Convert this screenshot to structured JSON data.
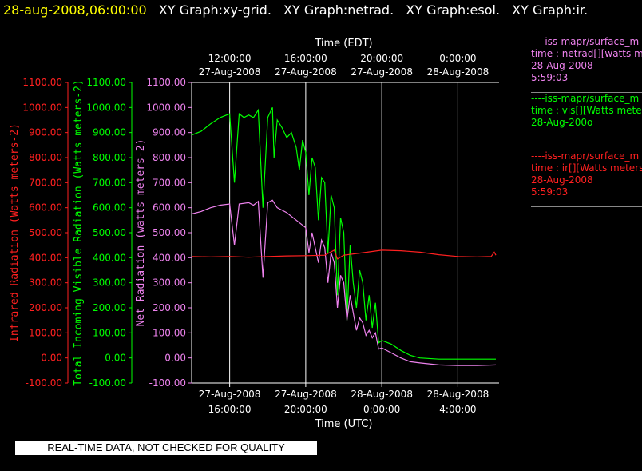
{
  "header": {
    "timestamp": "28-aug-2008,06:00:00",
    "titles": [
      "XY Graph:xy-grid.",
      "XY Graph:netrad.",
      "XY Graph:esol.",
      "XY Graph:ir."
    ]
  },
  "colors": {
    "ir": "#ff2020",
    "vis": "#00ff00",
    "net": "#ee82ee",
    "axis": "#ffffff",
    "grid": "#ffffff",
    "bg": "#000000",
    "timestamp": "#ffff00"
  },
  "legend": [
    {
      "key": "netrad",
      "color": "#ee82ee",
      "source": "----iss-mapr/surface_m",
      "field": "time : netrad[][watts m",
      "date": "28-Aug-2008",
      "time": "5:59:03"
    },
    {
      "key": "vis",
      "color": "#00ff00",
      "source": "----iss-mapr/surface_m",
      "field": "time : vis[][Watts mete",
      "date": "28-Aug-200o",
      "time": ""
    },
    {
      "key": "ir",
      "color": "#ff2020",
      "source": "----iss-mapr/surface_m",
      "field": "time : ir[][Watts meters",
      "date": "28-Aug-2008",
      "time": "5:59:03"
    }
  ],
  "footer": {
    "quality_notice": "REAL-TIME DATA, NOT CHECKED FOR QUALITY"
  },
  "chart_data": {
    "type": "line",
    "x_axis_bottom": {
      "label": "Time (UTC)",
      "range": [
        "2008-08-27T14:00",
        "2008-08-28T06:10"
      ],
      "ticks": [
        {
          "t": "2008-08-27T16:00",
          "date": "27-Aug-2008",
          "time": "16:00:00"
        },
        {
          "t": "2008-08-27T20:00",
          "date": "27-Aug-2008",
          "time": "20:00:00"
        },
        {
          "t": "2008-08-28T00:00",
          "date": "28-Aug-2008",
          "time": "0:00:00"
        },
        {
          "t": "2008-08-28T04:00",
          "date": "28-Aug-2008",
          "time": "4:00:00"
        }
      ]
    },
    "x_axis_top": {
      "label": "Time (EDT)",
      "ticks": [
        {
          "t": "2008-08-27T16:00",
          "time": "12:00:00",
          "date": "27-Aug-2008"
        },
        {
          "t": "2008-08-27T20:00",
          "time": "16:00:00",
          "date": "27-Aug-2008"
        },
        {
          "t": "2008-08-28T00:00",
          "time": "20:00:00",
          "date": "27-Aug-2008"
        },
        {
          "t": "2008-08-28T04:00",
          "time": "0:00:00",
          "date": "28-Aug-2008"
        }
      ]
    },
    "y_axes": [
      {
        "key": "ir",
        "label": "Infrared Radiation (Watts meters-2)",
        "ylim": [
          -100,
          1100
        ],
        "color": "#ff2020"
      },
      {
        "key": "vis",
        "label": "Total Incoming Visible Radiation (Watts meters-2)",
        "ylim": [
          -100,
          1100
        ],
        "color": "#00ff00"
      },
      {
        "key": "net",
        "label": "Net Radiation (watts meters-2)",
        "ylim": [
          -100,
          1100
        ],
        "color": "#ee82ee"
      }
    ],
    "y_ticks": [
      1100,
      1000,
      900,
      800,
      700,
      600,
      500,
      400,
      300,
      200,
      100,
      0,
      -100
    ],
    "grid": true,
    "series": [
      {
        "key": "vis",
        "color": "#00ff00",
        "points": [
          [
            "2008-08-27T14:00",
            890
          ],
          [
            "2008-08-27T14:30",
            905
          ],
          [
            "2008-08-27T15:00",
            935
          ],
          [
            "2008-08-27T15:30",
            960
          ],
          [
            "2008-08-27T16:00",
            975
          ],
          [
            "2008-08-27T16:15",
            700
          ],
          [
            "2008-08-27T16:30",
            975
          ],
          [
            "2008-08-27T16:45",
            960
          ],
          [
            "2008-08-27T17:00",
            970
          ],
          [
            "2008-08-27T17:15",
            960
          ],
          [
            "2008-08-27T17:30",
            990
          ],
          [
            "2008-08-27T17:45",
            600
          ],
          [
            "2008-08-27T18:00",
            960
          ],
          [
            "2008-08-27T18:15",
            1000
          ],
          [
            "2008-08-27T18:20",
            800
          ],
          [
            "2008-08-27T18:30",
            950
          ],
          [
            "2008-08-27T18:45",
            920
          ],
          [
            "2008-08-27T19:00",
            880
          ],
          [
            "2008-08-27T19:15",
            900
          ],
          [
            "2008-08-27T19:30",
            840
          ],
          [
            "2008-08-27T19:40",
            750
          ],
          [
            "2008-08-27T19:50",
            870
          ],
          [
            "2008-08-27T20:00",
            820
          ],
          [
            "2008-08-27T20:10",
            650
          ],
          [
            "2008-08-27T20:20",
            800
          ],
          [
            "2008-08-27T20:30",
            760
          ],
          [
            "2008-08-27T20:40",
            550
          ],
          [
            "2008-08-27T20:50",
            720
          ],
          [
            "2008-08-27T21:00",
            700
          ],
          [
            "2008-08-27T21:10",
            420
          ],
          [
            "2008-08-27T21:20",
            650
          ],
          [
            "2008-08-27T21:30",
            600
          ],
          [
            "2008-08-27T21:40",
            250
          ],
          [
            "2008-08-27T21:50",
            560
          ],
          [
            "2008-08-27T22:00",
            500
          ],
          [
            "2008-08-27T22:10",
            150
          ],
          [
            "2008-08-27T22:20",
            450
          ],
          [
            "2008-08-27T22:30",
            300
          ],
          [
            "2008-08-27T22:40",
            200
          ],
          [
            "2008-08-27T22:50",
            350
          ],
          [
            "2008-08-27T23:00",
            300
          ],
          [
            "2008-08-27T23:10",
            150
          ],
          [
            "2008-08-27T23:20",
            250
          ],
          [
            "2008-08-27T23:30",
            120
          ],
          [
            "2008-08-27T23:40",
            220
          ],
          [
            "2008-08-27T23:50",
            60
          ],
          [
            "2008-08-28T00:00",
            70
          ],
          [
            "2008-08-28T00:30",
            55
          ],
          [
            "2008-08-28T01:00",
            30
          ],
          [
            "2008-08-28T01:30",
            10
          ],
          [
            "2008-08-28T02:00",
            0
          ],
          [
            "2008-08-28T03:00",
            -5
          ],
          [
            "2008-08-28T04:00",
            -5
          ],
          [
            "2008-08-28T05:00",
            -5
          ],
          [
            "2008-08-28T06:00",
            -5
          ]
        ]
      },
      {
        "key": "net",
        "color": "#ee82ee",
        "points": [
          [
            "2008-08-27T14:00",
            575
          ],
          [
            "2008-08-27T14:30",
            585
          ],
          [
            "2008-08-27T15:00",
            600
          ],
          [
            "2008-08-27T15:30",
            610
          ],
          [
            "2008-08-27T16:00",
            615
          ],
          [
            "2008-08-27T16:15",
            450
          ],
          [
            "2008-08-27T16:30",
            615
          ],
          [
            "2008-08-27T17:00",
            620
          ],
          [
            "2008-08-27T17:15",
            610
          ],
          [
            "2008-08-27T17:30",
            625
          ],
          [
            "2008-08-27T17:45",
            320
          ],
          [
            "2008-08-27T18:00",
            620
          ],
          [
            "2008-08-27T18:15",
            630
          ],
          [
            "2008-08-27T18:30",
            600
          ],
          [
            "2008-08-27T19:00",
            580
          ],
          [
            "2008-08-27T19:30",
            550
          ],
          [
            "2008-08-27T20:00",
            520
          ],
          [
            "2008-08-27T20:10",
            420
          ],
          [
            "2008-08-27T20:20",
            500
          ],
          [
            "2008-08-27T20:40",
            380
          ],
          [
            "2008-08-27T20:50",
            470
          ],
          [
            "2008-08-27T21:00",
            440
          ],
          [
            "2008-08-27T21:10",
            300
          ],
          [
            "2008-08-27T21:20",
            420
          ],
          [
            "2008-08-27T21:30",
            380
          ],
          [
            "2008-08-27T21:40",
            200
          ],
          [
            "2008-08-27T21:50",
            330
          ],
          [
            "2008-08-27T22:00",
            300
          ],
          [
            "2008-08-27T22:10",
            150
          ],
          [
            "2008-08-27T22:20",
            250
          ],
          [
            "2008-08-27T22:30",
            180
          ],
          [
            "2008-08-27T22:40",
            110
          ],
          [
            "2008-08-27T22:50",
            160
          ],
          [
            "2008-08-27T23:00",
            140
          ],
          [
            "2008-08-27T23:10",
            90
          ],
          [
            "2008-08-27T23:20",
            110
          ],
          [
            "2008-08-27T23:30",
            80
          ],
          [
            "2008-08-27T23:40",
            100
          ],
          [
            "2008-08-27T23:50",
            35
          ],
          [
            "2008-08-28T00:00",
            40
          ],
          [
            "2008-08-28T00:30",
            20
          ],
          [
            "2008-08-28T01:00",
            0
          ],
          [
            "2008-08-28T01:30",
            -15
          ],
          [
            "2008-08-28T02:00",
            -20
          ],
          [
            "2008-08-28T03:00",
            -28
          ],
          [
            "2008-08-28T04:00",
            -30
          ],
          [
            "2008-08-28T05:00",
            -30
          ],
          [
            "2008-08-28T06:00",
            -28
          ]
        ]
      },
      {
        "key": "ir",
        "color": "#ff2020",
        "points": [
          [
            "2008-08-27T14:00",
            405
          ],
          [
            "2008-08-27T15:00",
            403
          ],
          [
            "2008-08-27T16:00",
            405
          ],
          [
            "2008-08-27T17:00",
            402
          ],
          [
            "2008-08-27T18:00",
            405
          ],
          [
            "2008-08-27T19:00",
            407
          ],
          [
            "2008-08-27T20:00",
            408
          ],
          [
            "2008-08-27T21:00",
            410
          ],
          [
            "2008-08-27T21:30",
            430
          ],
          [
            "2008-08-27T21:40",
            395
          ],
          [
            "2008-08-27T22:00",
            410
          ],
          [
            "2008-08-27T23:00",
            420
          ],
          [
            "2008-08-28T00:00",
            430
          ],
          [
            "2008-08-28T01:00",
            428
          ],
          [
            "2008-08-28T02:00",
            422
          ],
          [
            "2008-08-28T03:00",
            412
          ],
          [
            "2008-08-28T04:00",
            405
          ],
          [
            "2008-08-28T05:00",
            403
          ],
          [
            "2008-08-28T05:45",
            405
          ],
          [
            "2008-08-28T05:55",
            422
          ],
          [
            "2008-08-28T06:00",
            410
          ]
        ]
      }
    ]
  }
}
